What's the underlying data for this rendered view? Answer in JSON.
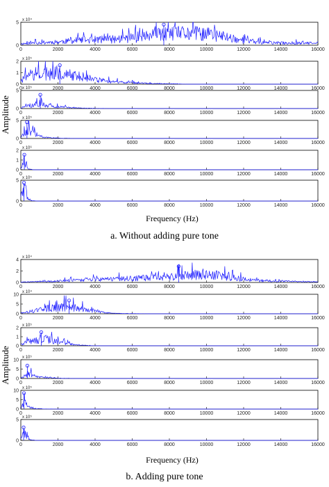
{
  "colors": {
    "trace": "#1a1aff",
    "axis": "#000000"
  },
  "chart_data": [
    {
      "type": "line",
      "figure": "a",
      "caption": "a. Without adding pure tone",
      "xlabel": "Frequency (Hz)",
      "ylabel": "Amplitude",
      "xlim": [
        0,
        16000
      ],
      "xticks": [
        0,
        2000,
        4000,
        6000,
        8000,
        10000,
        12000,
        14000,
        16000
      ],
      "panels": [
        {
          "exp": "x 10⁴",
          "ylim": [
            0,
            5
          ],
          "yticks": [
            0,
            5
          ],
          "xlim": [
            0,
            16000
          ],
          "show_xticks": true,
          "envelope": [
            [
              0,
              0.4
            ],
            [
              1000,
              0.7
            ],
            [
              2000,
              0.9
            ],
            [
              3000,
              1.3
            ],
            [
              4000,
              1.5
            ],
            [
              5000,
              1.6
            ],
            [
              6000,
              2.0
            ],
            [
              7000,
              2.6
            ],
            [
              8000,
              3.0
            ],
            [
              9000,
              3.2
            ],
            [
              10000,
              3.1
            ],
            [
              11000,
              2.3
            ],
            [
              12000,
              1.3
            ],
            [
              13000,
              0.7
            ],
            [
              14000,
              0.6
            ],
            [
              15000,
              0.6
            ],
            [
              16000,
              0.5
            ]
          ],
          "marker": [
            7700,
            4.5
          ]
        },
        {
          "exp": "x 10⁵",
          "ylim": [
            0,
            2
          ],
          "yticks": [
            0,
            1,
            2
          ],
          "xlim": [
            0,
            16000
          ],
          "show_xticks": true,
          "envelope": [
            [
              0,
              0.4
            ],
            [
              500,
              1.0
            ],
            [
              1000,
              1.2
            ],
            [
              1500,
              1.3
            ],
            [
              2000,
              1.2
            ],
            [
              2500,
              1.0
            ],
            [
              3000,
              0.9
            ],
            [
              4000,
              0.5
            ],
            [
              5000,
              0.25
            ],
            [
              6000,
              0.15
            ],
            [
              7000,
              0.08
            ],
            [
              8000,
              0.04
            ],
            [
              9000,
              0.0
            ],
            [
              16000,
              0.0
            ]
          ],
          "marker": [
            2100,
            1.65
          ]
        },
        {
          "exp": "x 10⁵",
          "ylim": [
            0,
            5
          ],
          "yticks": [
            0,
            5
          ],
          "xlim": [
            0,
            16000
          ],
          "show_xticks": true,
          "envelope": [
            [
              0,
              0.2
            ],
            [
              300,
              0.8
            ],
            [
              700,
              1.4
            ],
            [
              1000,
              1.8
            ],
            [
              1300,
              1.2
            ],
            [
              2000,
              0.6
            ],
            [
              3000,
              0.2
            ],
            [
              4000,
              0.05
            ],
            [
              5000,
              0.0
            ],
            [
              16000,
              0.0
            ]
          ],
          "marker": [
            1050,
            3.8
          ]
        },
        {
          "exp": "x 10⁵",
          "ylim": [
            0,
            5
          ],
          "yticks": [
            0,
            5
          ],
          "xlim": [
            0,
            16000
          ],
          "show_xticks": true,
          "envelope": [
            [
              0,
              0.5
            ],
            [
              200,
              1.6
            ],
            [
              400,
              2.6
            ],
            [
              600,
              2.0
            ],
            [
              800,
              1.2
            ],
            [
              1000,
              0.7
            ],
            [
              1500,
              0.3
            ],
            [
              2000,
              0.1
            ],
            [
              3000,
              0.0
            ],
            [
              16000,
              0.0
            ]
          ],
          "marker": [
            330,
            4.5
          ]
        },
        {
          "exp": "x 10⁶",
          "ylim": [
            0,
            2
          ],
          "yticks": [
            0,
            1,
            2
          ],
          "xlim": [
            0,
            16000
          ],
          "show_xticks": true,
          "envelope": [
            [
              0,
              0.1
            ],
            [
              100,
              0.6
            ],
            [
              200,
              1.2
            ],
            [
              300,
              0.4
            ],
            [
              400,
              0.1
            ],
            [
              700,
              0.0
            ],
            [
              16000,
              0.0
            ]
          ],
          "marker": [
            190,
            1.55
          ]
        },
        {
          "exp": "x 10⁵",
          "ylim": [
            0,
            5
          ],
          "yticks": [
            0,
            5
          ],
          "xlim": [
            0,
            16000
          ],
          "show_xticks": true,
          "envelope": [
            [
              0,
              0.6
            ],
            [
              100,
              2.8
            ],
            [
              200,
              3.8
            ],
            [
              300,
              2.4
            ],
            [
              400,
              0.7
            ],
            [
              600,
              0.1
            ],
            [
              900,
              0.0
            ],
            [
              16000,
              0.0
            ]
          ],
          "marker": [
            170,
            4.4
          ]
        }
      ]
    },
    {
      "type": "line",
      "figure": "b",
      "caption": "b. Adding pure tone",
      "xlabel": "Frequency (Hz)",
      "ylabel": "Amplitude",
      "xlim": [
        0,
        16000
      ],
      "xticks": [
        0,
        2000,
        4000,
        6000,
        8000,
        10000,
        12000,
        14000,
        16000
      ],
      "panels": [
        {
          "exp": "x 10⁴",
          "ylim": [
            0,
            4
          ],
          "yticks": [
            0,
            2,
            4
          ],
          "xlim": [
            0,
            16000
          ],
          "show_xticks": true,
          "envelope": [
            [
              0,
              0.1
            ],
            [
              1000,
              0.2
            ],
            [
              2000,
              0.3
            ],
            [
              3000,
              0.5
            ],
            [
              4000,
              0.7
            ],
            [
              5000,
              0.8
            ],
            [
              6000,
              0.9
            ],
            [
              7000,
              1.0
            ],
            [
              8000,
              1.2
            ],
            [
              9000,
              1.6
            ],
            [
              10000,
              1.8
            ],
            [
              11000,
              1.3
            ],
            [
              12000,
              0.7
            ],
            [
              13000,
              0.4
            ],
            [
              14000,
              0.3
            ],
            [
              15000,
              0.2
            ],
            [
              16000,
              0.15
            ]
          ],
          "marker": [
            8500,
            2.8
          ]
        },
        {
          "exp": "x 10⁴",
          "ylim": [
            0,
            10
          ],
          "yticks": [
            0,
            5,
            10
          ],
          "xlim": [
            0,
            16000
          ],
          "show_xticks": true,
          "envelope": [
            [
              0,
              0.5
            ],
            [
              500,
              1.5
            ],
            [
              1000,
              2.5
            ],
            [
              1500,
              3.5
            ],
            [
              2000,
              4.0
            ],
            [
              2500,
              4.2
            ],
            [
              3000,
              3.5
            ],
            [
              3500,
              2.8
            ],
            [
              4000,
              1.8
            ],
            [
              4500,
              0.8
            ],
            [
              5000,
              0.3
            ],
            [
              6000,
              0.1
            ],
            [
              7000,
              0.0
            ],
            [
              16000,
              0.0
            ]
          ],
          "marker": [
            2600,
            6.8
          ]
        },
        {
          "exp": "x 10⁵",
          "ylim": [
            0,
            2
          ],
          "yticks": [
            0,
            1,
            2
          ],
          "xlim": [
            0,
            16000
          ],
          "show_xticks": true,
          "envelope": [
            [
              0,
              0.2
            ],
            [
              300,
              0.5
            ],
            [
              700,
              0.8
            ],
            [
              1000,
              1.0
            ],
            [
              1300,
              0.9
            ],
            [
              1700,
              0.7
            ],
            [
              2000,
              0.5
            ],
            [
              2500,
              0.3
            ],
            [
              3000,
              0.1
            ],
            [
              4000,
              0.0
            ],
            [
              16000,
              0.0
            ]
          ],
          "marker": [
            1100,
            1.5
          ]
        },
        {
          "exp": "x 10⁵",
          "ylim": [
            0,
            10
          ],
          "yticks": [
            0,
            5,
            10
          ],
          "xlim": [
            0,
            16000
          ],
          "show_xticks": true,
          "envelope": [
            [
              0,
              0.3
            ],
            [
              200,
              1.8
            ],
            [
              400,
              3.2
            ],
            [
              600,
              2.2
            ],
            [
              800,
              1.4
            ],
            [
              1200,
              0.6
            ],
            [
              2000,
              0.2
            ],
            [
              3000,
              0.0
            ],
            [
              16000,
              0.0
            ]
          ],
          "marker": [
            350,
            6.8
          ]
        },
        {
          "exp": "x 10⁵",
          "ylim": [
            0,
            10
          ],
          "yticks": [
            0,
            5,
            10
          ],
          "xlim": [
            0,
            16000
          ],
          "show_xticks": true,
          "envelope": [
            [
              0,
              0.4
            ],
            [
              100,
              2.5
            ],
            [
              200,
              4.5
            ],
            [
              300,
              3.0
            ],
            [
              400,
              1.6
            ],
            [
              700,
              0.5
            ],
            [
              1200,
              0.1
            ],
            [
              2000,
              0.0
            ],
            [
              16000,
              0.0
            ]
          ],
          "marker": [
            170,
            8.5
          ]
        },
        {
          "exp": "x 10⁵",
          "ylim": [
            0,
            5
          ],
          "yticks": [
            0,
            5
          ],
          "xlim": [
            0,
            16000
          ],
          "show_xticks": true,
          "envelope": [
            [
              0,
              0.4
            ],
            [
              100,
              1.4
            ],
            [
              200,
              2.2
            ],
            [
              300,
              1.4
            ],
            [
              400,
              0.6
            ],
            [
              600,
              0.1
            ],
            [
              900,
              0.0
            ],
            [
              16000,
              0.0
            ]
          ],
          "marker": [
            150,
            3.1
          ]
        }
      ]
    }
  ]
}
